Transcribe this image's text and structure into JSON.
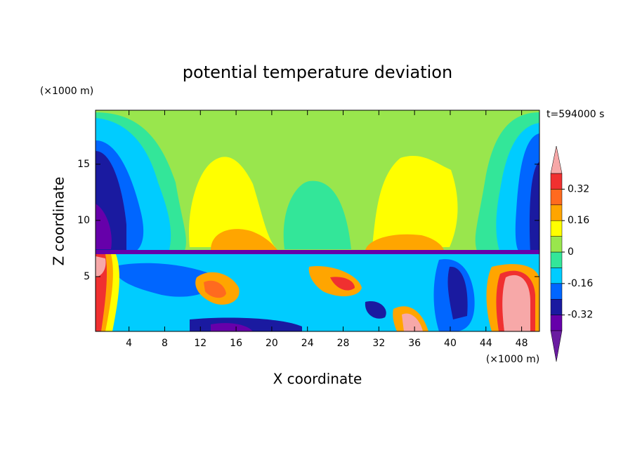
{
  "chart_data": {
    "type": "contourf",
    "title": "potential temperature deviation",
    "xlabel": "X coordinate",
    "ylabel": "Z coordinate",
    "x_unit": "(×1000 m)",
    "y_unit": "(×1000 m)",
    "annotation": "t=594000 s",
    "xlim": [
      0.25,
      50
    ],
    "ylim": [
      0.125,
      19.8
    ],
    "xticks": [
      4,
      8,
      12,
      16,
      20,
      24,
      28,
      32,
      36,
      40,
      44,
      48
    ],
    "yticks": [
      5,
      10,
      15
    ],
    "levels": [
      -0.4,
      -0.32,
      -0.24,
      -0.16,
      -0.08,
      0,
      0.08,
      0.16,
      0.24,
      0.32,
      0.4
    ],
    "colors": [
      "#6a1ca0",
      "#6600aa",
      "#1a1aa0",
      "#0066ff",
      "#00ccff",
      "#33e699",
      "#99e64d",
      "#ffff00",
      "#ffa500",
      "#ff6a1f",
      "#f03030",
      "#f7a8a8"
    ],
    "colorbar_ticks": [
      -0.32,
      -0.16,
      0,
      0.16,
      0.32
    ]
  }
}
